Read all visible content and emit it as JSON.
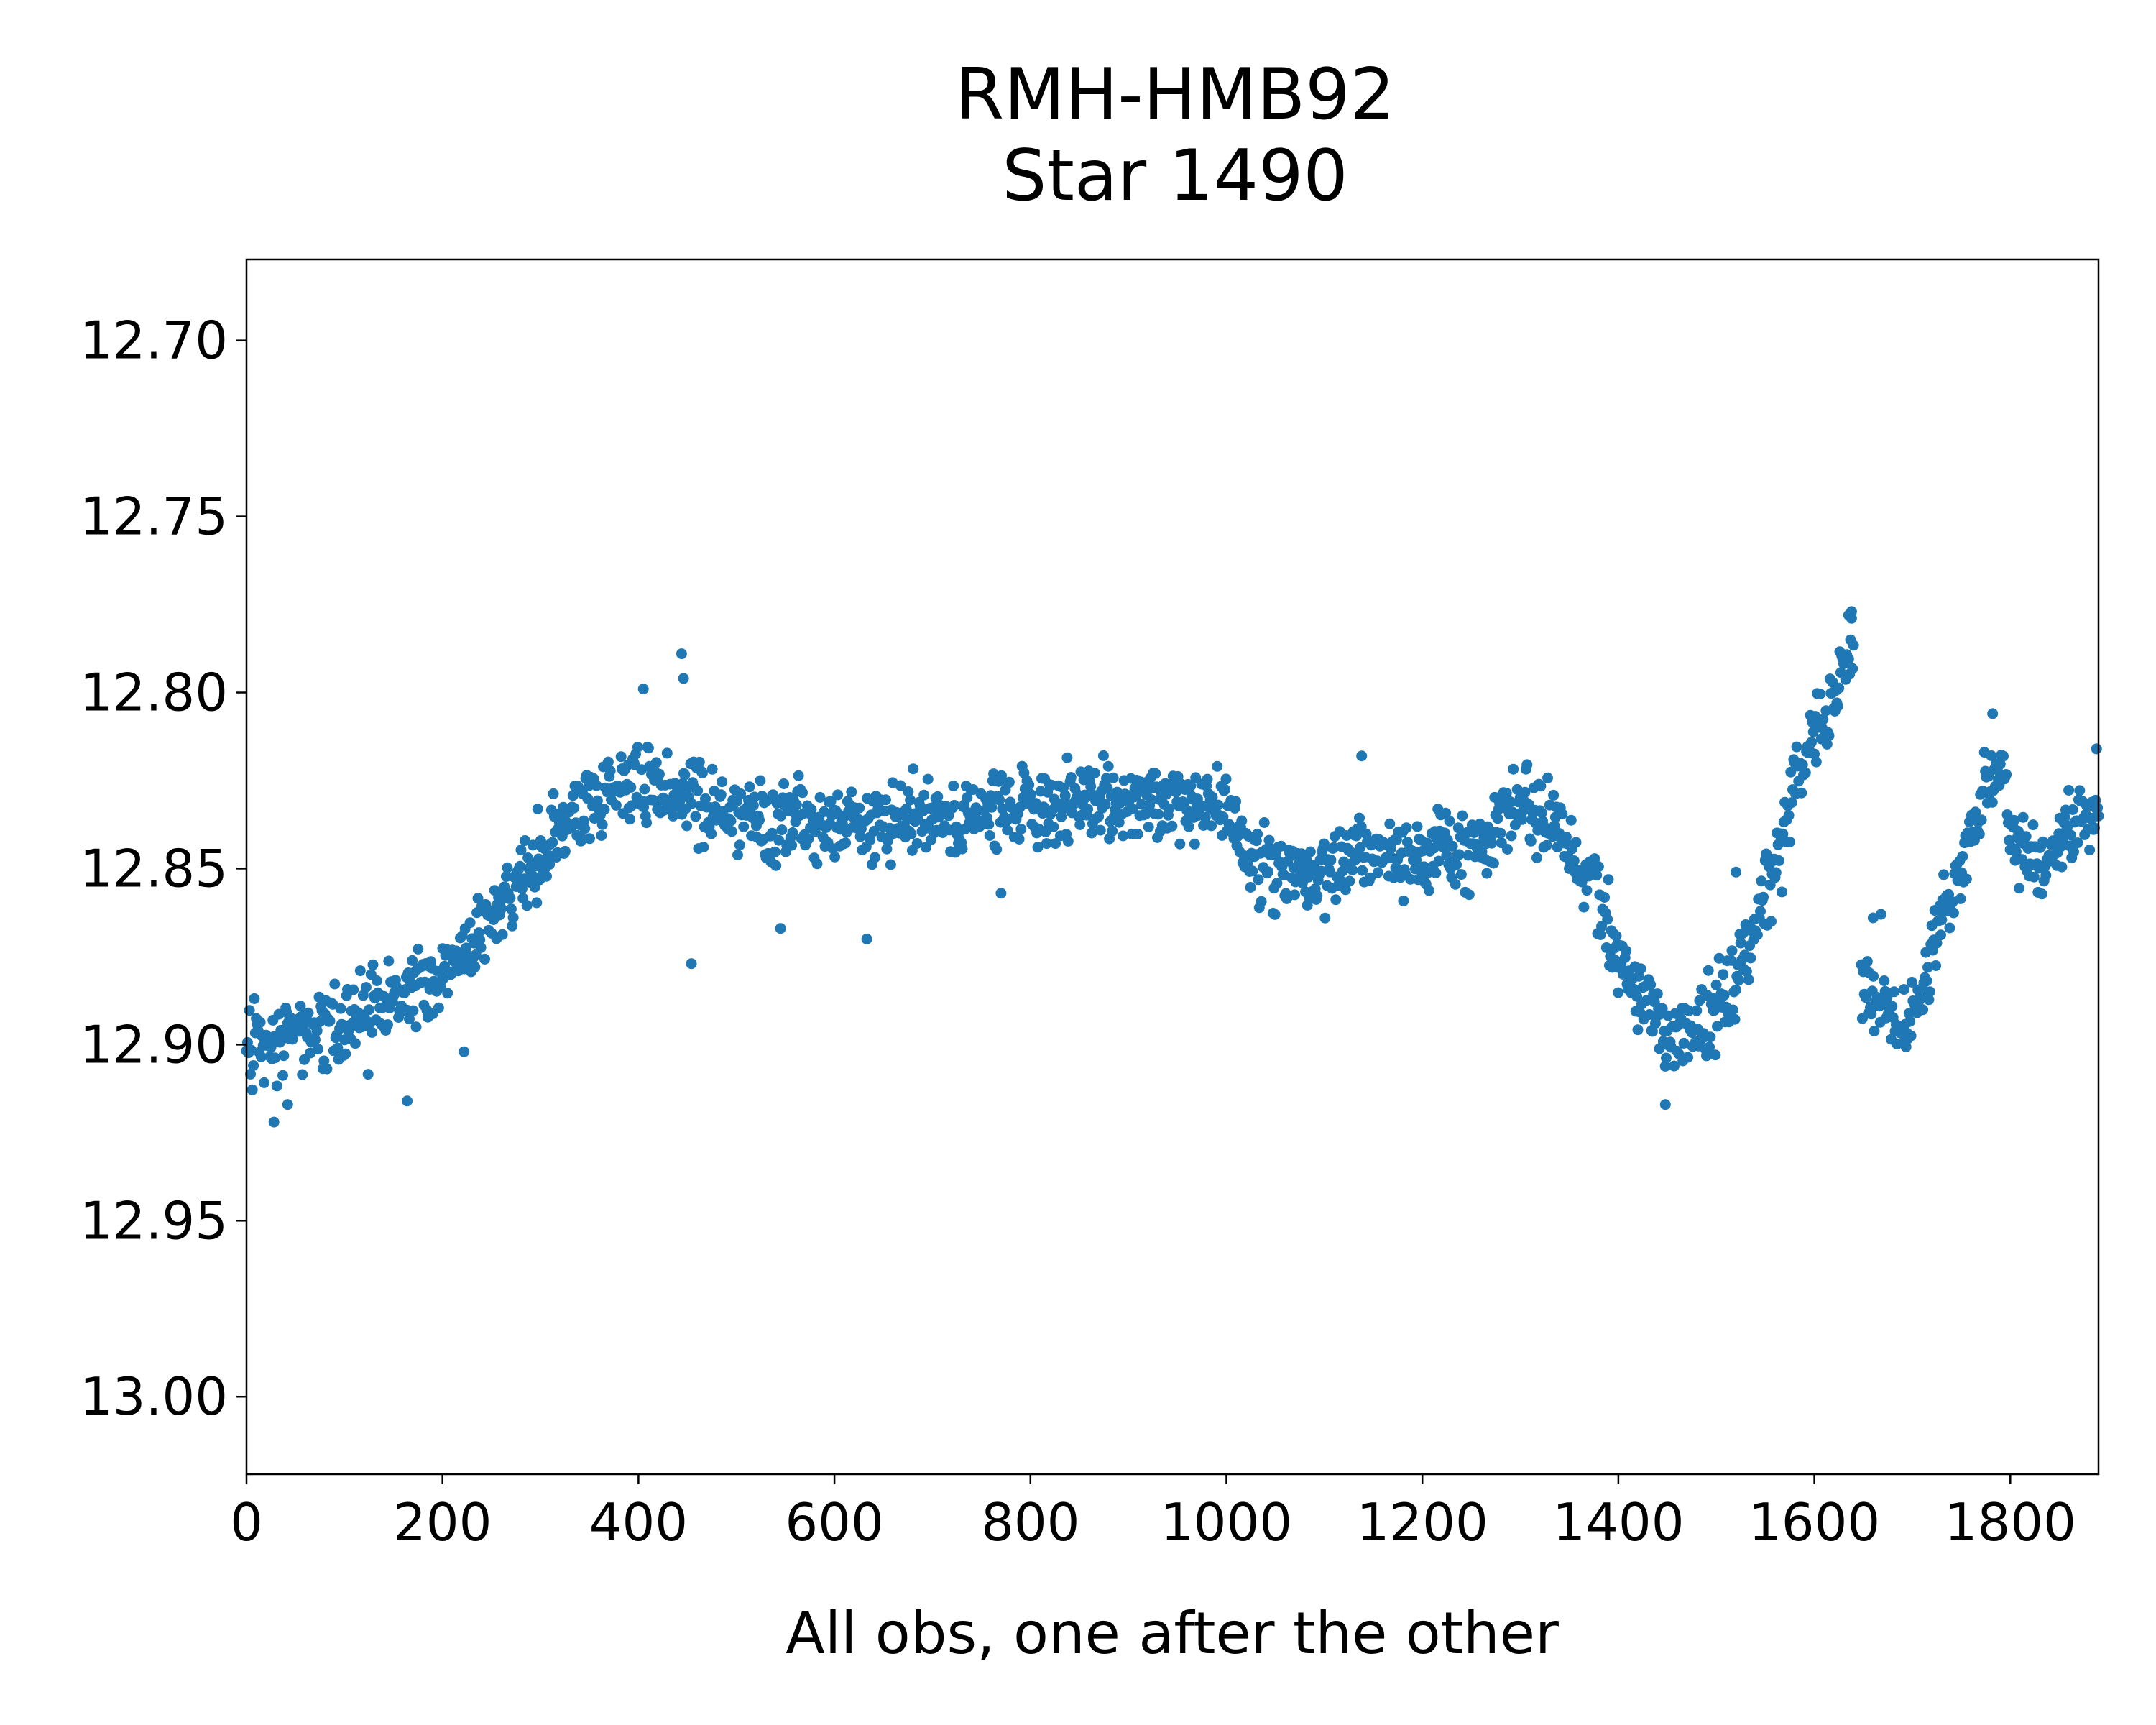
{
  "chart_data": {
    "type": "scatter",
    "title_lines": [
      "RMH-HMB92",
      "Star 1490"
    ],
    "xlabel": "All obs, one after the other",
    "ylabel": "",
    "xlim": [
      0,
      1890
    ],
    "ylim": [
      13.022,
      12.677
    ],
    "y_inverted": true,
    "x_ticks": [
      0,
      200,
      400,
      600,
      800,
      1000,
      1200,
      1400,
      1600,
      1800
    ],
    "x_tick_labels": [
      "0",
      "200",
      "400",
      "600",
      "800",
      "1000",
      "1200",
      "1400",
      "1600",
      "1800"
    ],
    "y_ticks": [
      12.7,
      12.75,
      12.8,
      12.85,
      12.9,
      12.95,
      13.0
    ],
    "y_tick_labels": [
      "12.70",
      "12.75",
      "12.80",
      "12.85",
      "12.90",
      "12.95",
      "13.00"
    ],
    "grid": false,
    "marker_color": "#1f77b4",
    "series": [
      {
        "trend": [
          [
            0,
            12.9
          ],
          [
            50,
            12.898
          ],
          [
            100,
            12.895
          ],
          [
            150,
            12.888
          ],
          [
            200,
            12.88
          ],
          [
            250,
            12.862
          ],
          [
            300,
            12.848
          ],
          [
            350,
            12.83
          ],
          [
            400,
            12.826
          ],
          [
            450,
            12.83
          ],
          [
            500,
            12.835
          ],
          [
            600,
            12.838
          ],
          [
            700,
            12.836
          ],
          [
            800,
            12.834
          ],
          [
            900,
            12.83
          ],
          [
            1000,
            12.832
          ],
          [
            1020,
            12.845
          ],
          [
            1050,
            12.85
          ],
          [
            1100,
            12.85
          ],
          [
            1150,
            12.845
          ],
          [
            1200,
            12.847
          ],
          [
            1250,
            12.845
          ],
          [
            1300,
            12.833
          ],
          [
            1330,
            12.835
          ],
          [
            1350,
            12.845
          ],
          [
            1380,
            12.86
          ],
          [
            1400,
            12.875
          ],
          [
            1430,
            12.89
          ],
          [
            1455,
            12.898
          ],
          [
            1480,
            12.895
          ],
          [
            1510,
            12.885
          ],
          [
            1540,
            12.868
          ],
          [
            1560,
            12.85
          ],
          [
            1580,
            12.825
          ],
          [
            1600,
            12.812
          ],
          [
            1620,
            12.802
          ],
          [
            1640,
            12.785
          ]
        ],
        "x_range": [
          0,
          1640
        ],
        "n_points": 1640,
        "scatter": 0.01
      },
      {
        "trend": [
          [
            1648,
            12.88
          ],
          [
            1670,
            12.888
          ],
          [
            1690,
            12.892
          ],
          [
            1710,
            12.885
          ],
          [
            1730,
            12.865
          ],
          [
            1750,
            12.85
          ],
          [
            1770,
            12.83
          ],
          [
            1790,
            12.822
          ],
          [
            1800,
            12.84
          ],
          [
            1830,
            12.848
          ],
          [
            1860,
            12.84
          ],
          [
            1890,
            12.832
          ]
        ],
        "x_range": [
          1648,
          1890
        ],
        "n_points": 240,
        "scatter": 0.009
      }
    ],
    "outliers": [
      [
        444,
        12.789
      ],
      [
        446,
        12.796
      ],
      [
        405,
        12.799
      ],
      [
        454,
        12.877
      ],
      [
        222,
        12.902
      ],
      [
        28,
        12.922
      ],
      [
        42,
        12.917
      ],
      [
        164,
        12.916
      ],
      [
        633,
        12.87
      ],
      [
        545,
        12.867
      ],
      [
        1138,
        12.818
      ],
      [
        1448,
        12.917
      ],
      [
        1520,
        12.851
      ],
      [
        1635,
        12.778
      ],
      [
        1638,
        12.777
      ],
      [
        1782,
        12.806
      ],
      [
        1888,
        12.816
      ],
      [
        770,
        12.857
      ],
      [
        1660,
        12.864
      ],
      [
        1668,
        12.863
      ]
    ]
  }
}
